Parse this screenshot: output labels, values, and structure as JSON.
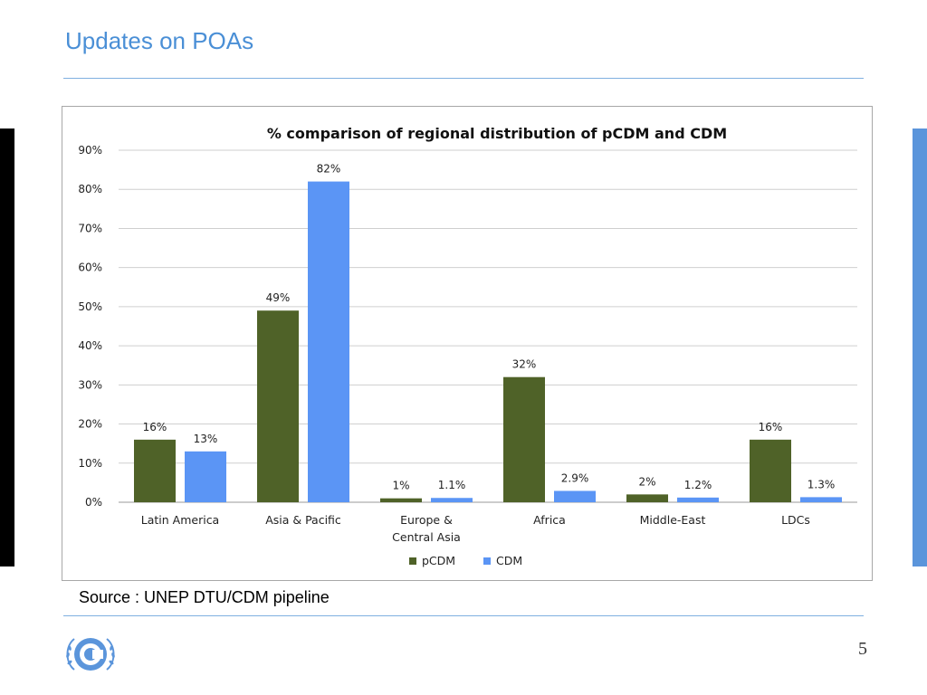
{
  "slide": {
    "title": "Updates on POAs",
    "source": "Source : UNEP DTU/CDM pipeline",
    "page_number": "5"
  },
  "colors": {
    "title": "#4a8fd6",
    "pcdm": "#4f6228",
    "cdm": "#5b95f5",
    "rule": "#7fb0e0"
  },
  "chart_data": {
    "type": "bar",
    "title": "% comparison of regional distribution of pCDM and CDM",
    "categories": [
      "Latin America",
      "Asia & Pacific",
      "Europe &\nCentral Asia",
      "Africa",
      "Middle-East",
      "LDCs"
    ],
    "series": [
      {
        "name": "pCDM",
        "values": [
          16,
          49,
          1,
          32,
          2,
          16
        ],
        "labels": [
          "16%",
          "49%",
          "1%",
          "32%",
          "2%",
          "16%"
        ]
      },
      {
        "name": "CDM",
        "values": [
          13,
          82,
          1.1,
          2.9,
          1.2,
          1.3
        ],
        "labels": [
          "13%",
          "82%",
          "1.1%",
          "2.9%",
          "1.2%",
          "1.3%"
        ]
      }
    ],
    "ylim": [
      0,
      90
    ],
    "yticks": [
      "0%",
      "10%",
      "20%",
      "30%",
      "40%",
      "50%",
      "60%",
      "70%",
      "80%",
      "90%"
    ],
    "grid": true,
    "legend": "bottom",
    "xlabel": "",
    "ylabel": ""
  }
}
